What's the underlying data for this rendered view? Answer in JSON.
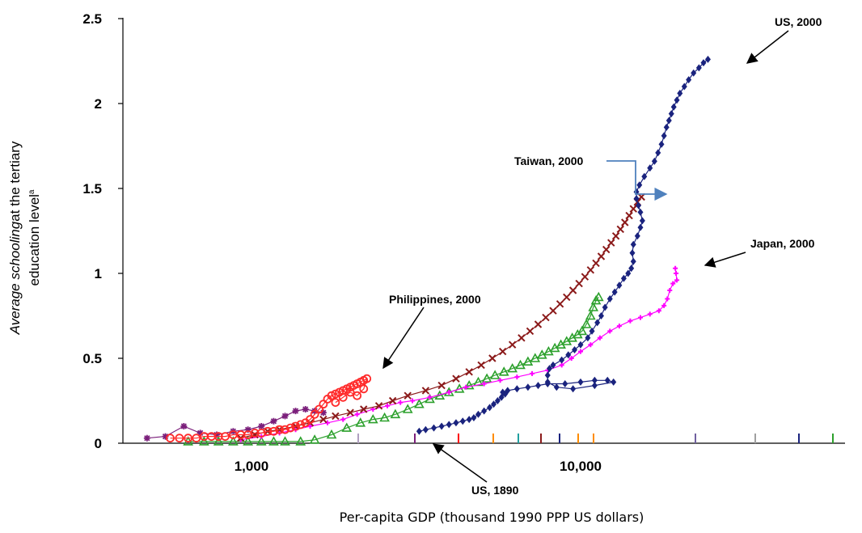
{
  "chart_data": {
    "type": "scatter",
    "xlabel": "Per-capita GDP (thousand 1990 PPP US dollars)",
    "ylabel_italic": "Average schooling",
    "ylabel_rest": "at the  tertiary",
    "ylabel_line2": "education level",
    "ylabel_sup": "a",
    "x_scale": "log",
    "xlim": [
      450,
      60000
    ],
    "ylim": [
      0,
      2.5
    ],
    "y_ticks": [
      "0",
      "0.5",
      "1",
      "1.5",
      "2",
      "2.5"
    ],
    "x_ticks": [
      "1,000",
      "10,000"
    ],
    "colors": {
      "us": "#1a237e",
      "taiwan": "#8b1a1a",
      "japan": "#ff00ff",
      "korea": "#2ca02c",
      "philippines": "#ff2a2a",
      "other": "#7b1f7b",
      "arrow_taiwan": "#4f81bd"
    },
    "annotations": [
      {
        "id": "us2000",
        "text": "US, 2000"
      },
      {
        "id": "taiwan2000",
        "text": "Taiwan, 2000"
      },
      {
        "id": "japan2000",
        "text": "Japan, 2000"
      },
      {
        "id": "philippines2000",
        "text": "Philippines, 2000"
      },
      {
        "id": "us1890",
        "text": "US, 1890"
      }
    ],
    "series": [
      {
        "id": "us",
        "marker": "diamond",
        "points": [
          [
            3350,
            0.07
          ],
          [
            3500,
            0.08
          ],
          [
            3700,
            0.09
          ],
          [
            3900,
            0.1
          ],
          [
            4100,
            0.11
          ],
          [
            4300,
            0.12
          ],
          [
            4500,
            0.13
          ],
          [
            4700,
            0.14
          ],
          [
            4850,
            0.15
          ],
          [
            5000,
            0.17
          ],
          [
            5200,
            0.19
          ],
          [
            5400,
            0.21
          ],
          [
            5550,
            0.23
          ],
          [
            5700,
            0.25
          ],
          [
            5850,
            0.27
          ],
          [
            6000,
            0.29
          ],
          [
            5900,
            0.3
          ],
          [
            6100,
            0.31
          ],
          [
            6500,
            0.32
          ],
          [
            7000,
            0.33
          ],
          [
            7500,
            0.34
          ],
          [
            8000,
            0.35
          ],
          [
            9000,
            0.35
          ],
          [
            10000,
            0.36
          ],
          [
            11000,
            0.37
          ],
          [
            12000,
            0.37
          ],
          [
            12500,
            0.36
          ],
          [
            11000,
            0.34
          ],
          [
            9500,
            0.32
          ],
          [
            8500,
            0.33
          ],
          [
            8000,
            0.36
          ],
          [
            8000,
            0.4
          ],
          [
            8100,
            0.44
          ],
          [
            8300,
            0.46
          ],
          [
            8800,
            0.49
          ],
          [
            9200,
            0.52
          ],
          [
            9600,
            0.55
          ],
          [
            10000,
            0.58
          ],
          [
            10500,
            0.62
          ],
          [
            10800,
            0.66
          ],
          [
            11200,
            0.71
          ],
          [
            11500,
            0.75
          ],
          [
            11800,
            0.8
          ],
          [
            12200,
            0.85
          ],
          [
            12600,
            0.89
          ],
          [
            13000,
            0.93
          ],
          [
            13400,
            0.97
          ],
          [
            13800,
            1.0
          ],
          [
            14100,
            1.03
          ],
          [
            14300,
            1.07
          ],
          [
            14200,
            1.12
          ],
          [
            14300,
            1.17
          ],
          [
            14700,
            1.22
          ],
          [
            15000,
            1.27
          ],
          [
            15200,
            1.31
          ],
          [
            15000,
            1.36
          ],
          [
            14800,
            1.4
          ],
          [
            14600,
            1.44
          ],
          [
            14600,
            1.48
          ],
          [
            14900,
            1.52
          ],
          [
            15400,
            1.57
          ],
          [
            16000,
            1.62
          ],
          [
            16500,
            1.66
          ],
          [
            16900,
            1.71
          ],
          [
            17300,
            1.76
          ],
          [
            17600,
            1.81
          ],
          [
            17900,
            1.86
          ],
          [
            18200,
            1.9
          ],
          [
            18500,
            1.94
          ],
          [
            18800,
            1.98
          ],
          [
            19200,
            2.02
          ],
          [
            19600,
            2.06
          ],
          [
            20200,
            2.1
          ],
          [
            20800,
            2.14
          ],
          [
            21500,
            2.18
          ],
          [
            22300,
            2.21
          ],
          [
            23000,
            2.24
          ],
          [
            23700,
            2.26
          ]
        ]
      },
      {
        "id": "taiwan",
        "marker": "cross",
        "points": [
          [
            1000,
            0.03
          ],
          [
            1100,
            0.05
          ],
          [
            1200,
            0.07
          ],
          [
            1300,
            0.08
          ],
          [
            1450,
            0.1
          ],
          [
            1600,
            0.12
          ],
          [
            1750,
            0.14
          ],
          [
            1900,
            0.16
          ],
          [
            2100,
            0.18
          ],
          [
            2300,
            0.2
          ],
          [
            2550,
            0.22
          ],
          [
            2800,
            0.25
          ],
          [
            3100,
            0.28
          ],
          [
            3500,
            0.31
          ],
          [
            3900,
            0.34
          ],
          [
            4300,
            0.38
          ],
          [
            4700,
            0.42
          ],
          [
            5100,
            0.46
          ],
          [
            5500,
            0.5
          ],
          [
            5900,
            0.54
          ],
          [
            6300,
            0.58
          ],
          [
            6700,
            0.62
          ],
          [
            7100,
            0.66
          ],
          [
            7500,
            0.7
          ],
          [
            7900,
            0.74
          ],
          [
            8300,
            0.78
          ],
          [
            8700,
            0.82
          ],
          [
            9100,
            0.86
          ],
          [
            9500,
            0.9
          ],
          [
            9900,
            0.94
          ],
          [
            10300,
            0.98
          ],
          [
            10700,
            1.02
          ],
          [
            11100,
            1.06
          ],
          [
            11500,
            1.1
          ],
          [
            11900,
            1.14
          ],
          [
            12300,
            1.18
          ],
          [
            12700,
            1.22
          ],
          [
            13100,
            1.26
          ],
          [
            13500,
            1.3
          ],
          [
            13900,
            1.34
          ],
          [
            14300,
            1.38
          ],
          [
            14700,
            1.42
          ],
          [
            15100,
            1.45
          ]
        ]
      },
      {
        "id": "japan",
        "marker": "plus",
        "points": [
          [
            1000,
            0.02
          ],
          [
            1150,
            0.04
          ],
          [
            1300,
            0.06
          ],
          [
            1450,
            0.08
          ],
          [
            1600,
            0.1
          ],
          [
            1800,
            0.12
          ],
          [
            2000,
            0.14
          ],
          [
            2200,
            0.17
          ],
          [
            2450,
            0.2
          ],
          [
            2700,
            0.22
          ],
          [
            2950,
            0.24
          ],
          [
            3200,
            0.25
          ],
          [
            3600,
            0.27
          ],
          [
            4100,
            0.3
          ],
          [
            4600,
            0.33
          ],
          [
            5200,
            0.35
          ],
          [
            5800,
            0.37
          ],
          [
            6500,
            0.39
          ],
          [
            7200,
            0.41
          ],
          [
            8000,
            0.43
          ],
          [
            8800,
            0.46
          ],
          [
            9400,
            0.5
          ],
          [
            10000,
            0.54
          ],
          [
            10700,
            0.58
          ],
          [
            11400,
            0.62
          ],
          [
            12200,
            0.66
          ],
          [
            13000,
            0.69
          ],
          [
            14000,
            0.72
          ],
          [
            15000,
            0.74
          ],
          [
            16000,
            0.76
          ],
          [
            17000,
            0.78
          ],
          [
            17600,
            0.81
          ],
          [
            18000,
            0.85
          ],
          [
            18300,
            0.9
          ],
          [
            18700,
            0.94
          ],
          [
            19200,
            0.96
          ],
          [
            19100,
            1.0
          ],
          [
            19000,
            1.03
          ]
        ]
      },
      {
        "id": "korea",
        "marker": "triangle",
        "points": [
          [
            700,
            0.01
          ],
          [
            780,
            0.01
          ],
          [
            860,
            0.01
          ],
          [
            950,
            0.01
          ],
          [
            1050,
            0.01
          ],
          [
            1150,
            0.01
          ],
          [
            1250,
            0.01
          ],
          [
            1350,
            0.01
          ],
          [
            1500,
            0.01
          ],
          [
            1650,
            0.02
          ],
          [
            1850,
            0.05
          ],
          [
            2050,
            0.09
          ],
          [
            2250,
            0.12
          ],
          [
            2450,
            0.14
          ],
          [
            2650,
            0.15
          ],
          [
            2850,
            0.17
          ],
          [
            3100,
            0.2
          ],
          [
            3350,
            0.23
          ],
          [
            3600,
            0.26
          ],
          [
            3850,
            0.28
          ],
          [
            4100,
            0.3
          ],
          [
            4400,
            0.32
          ],
          [
            4700,
            0.34
          ],
          [
            5000,
            0.36
          ],
          [
            5300,
            0.38
          ],
          [
            5600,
            0.4
          ],
          [
            5950,
            0.42
          ],
          [
            6300,
            0.44
          ],
          [
            6650,
            0.46
          ],
          [
            7000,
            0.48
          ],
          [
            7350,
            0.5
          ],
          [
            7700,
            0.52
          ],
          [
            8050,
            0.54
          ],
          [
            8400,
            0.56
          ],
          [
            8750,
            0.58
          ],
          [
            9100,
            0.6
          ],
          [
            9450,
            0.62
          ],
          [
            9800,
            0.64
          ],
          [
            10100,
            0.66
          ],
          [
            10400,
            0.7
          ],
          [
            10700,
            0.75
          ],
          [
            10900,
            0.8
          ],
          [
            11100,
            0.84
          ],
          [
            11300,
            0.86
          ]
        ]
      },
      {
        "id": "philippines",
        "marker": "circle",
        "points": [
          [
            620,
            0.03
          ],
          [
            660,
            0.03
          ],
          [
            700,
            0.03
          ],
          [
            740,
            0.03
          ],
          [
            780,
            0.04
          ],
          [
            820,
            0.04
          ],
          [
            860,
            0.04
          ],
          [
            900,
            0.04
          ],
          [
            950,
            0.05
          ],
          [
            1000,
            0.05
          ],
          [
            1050,
            0.05
          ],
          [
            1100,
            0.06
          ],
          [
            1150,
            0.06
          ],
          [
            1200,
            0.07
          ],
          [
            1250,
            0.07
          ],
          [
            1300,
            0.08
          ],
          [
            1350,
            0.08
          ],
          [
            1400,
            0.09
          ],
          [
            1450,
            0.1
          ],
          [
            1500,
            0.11
          ],
          [
            1550,
            0.12
          ],
          [
            1600,
            0.14
          ],
          [
            1650,
            0.17
          ],
          [
            1700,
            0.2
          ],
          [
            1750,
            0.23
          ],
          [
            1800,
            0.26
          ],
          [
            1850,
            0.28
          ],
          [
            1900,
            0.29
          ],
          [
            1950,
            0.3
          ],
          [
            2000,
            0.31
          ],
          [
            2050,
            0.32
          ],
          [
            2100,
            0.33
          ],
          [
            2150,
            0.34
          ],
          [
            2200,
            0.35
          ],
          [
            2250,
            0.36
          ],
          [
            2300,
            0.37
          ],
          [
            2350,
            0.38
          ],
          [
            2300,
            0.32
          ],
          [
            2200,
            0.28
          ],
          [
            2100,
            0.3
          ],
          [
            2000,
            0.27
          ],
          [
            1900,
            0.24
          ]
        ]
      },
      {
        "id": "other",
        "marker": "star",
        "points": [
          [
            530,
            0.03
          ],
          [
            600,
            0.04
          ],
          [
            680,
            0.1
          ],
          [
            760,
            0.06
          ],
          [
            850,
            0.05
          ],
          [
            950,
            0.07
          ],
          [
            1050,
            0.08
          ],
          [
            1150,
            0.1
          ],
          [
            1250,
            0.13
          ],
          [
            1350,
            0.16
          ],
          [
            1450,
            0.19
          ],
          [
            1550,
            0.2
          ],
          [
            1650,
            0.19
          ],
          [
            1750,
            0.18
          ]
        ]
      }
    ]
  }
}
